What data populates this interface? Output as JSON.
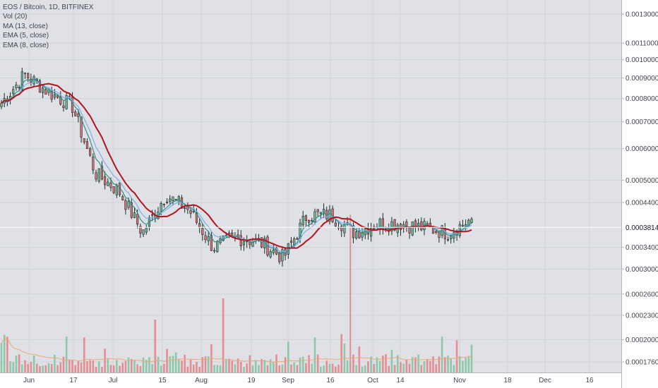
{
  "header": {
    "symbol": "EOS / Bitcoin, 1D, BITFINEX",
    "indicators": [
      "Vol (20)",
      "MA (13, close)",
      "EMA (5, close)",
      "EMA (8, close)"
    ]
  },
  "colors": {
    "background": "#dfe1e6",
    "axis_background": "#ffffff",
    "grid": "#d0d3d9",
    "candle_up": "#6fb99a",
    "candle_down": "#d9737a",
    "vol_up": "#8dc8ab",
    "vol_down": "#e28e92",
    "ma13": "#b0141c",
    "ema5": "#2f8f8a",
    "ema8": "#7ab0e6",
    "vol_ma": "#f0a877",
    "price_line": "#ffffff"
  },
  "price_axis": {
    "labels": [
      "0.00130000",
      "0.00110000",
      "0.00100000",
      "0.00090000",
      "0.00080000",
      "0.00070000",
      "0.00060000",
      "0.00050000",
      "0.00044000",
      "0.00034000",
      "0.00030000",
      "0.00026000",
      "0.00023000",
      "0.00020000",
      "0.00017600"
    ],
    "current_price": "0.00038147",
    "scale": "log"
  },
  "time_axis": {
    "labels": [
      "Jun",
      "17",
      "Jul",
      "15",
      "Aug",
      "19",
      "Sep",
      "16",
      "Oct",
      "14",
      "Nov",
      "18",
      "Dec",
      "16"
    ]
  },
  "chart_data": {
    "type": "candlestick",
    "series": [
      {
        "name": "EOS / Bitcoin, 1D, BITFINEX",
        "kind": "ohlc",
        "x": [
          "May 29",
          "Jun 6",
          "Jun 14",
          "Jun 22",
          "Jun 30",
          "Jul 8",
          "Jul 16",
          "Jul 24",
          "Aug 1",
          "Aug 9",
          "Aug 17",
          "Aug 25",
          "Sep 2",
          "Sep 10",
          "Sep 18",
          "Sep 26",
          "Oct 4",
          "Oct 12",
          "Oct 20",
          "Oct 28",
          "Nov 3"
        ],
        "close": [
          0.00078,
          0.00092,
          0.00083,
          0.00077,
          0.00052,
          0.00047,
          0.00037,
          0.00046,
          0.00042,
          0.00034,
          0.00036,
          0.00035,
          0.00032,
          0.00041,
          0.00041,
          0.00037,
          0.00039,
          0.00039,
          0.00038,
          0.00037,
          0.0004
        ]
      },
      {
        "name": "MA (13, close)",
        "kind": "line",
        "values": [
          0.00082,
          0.00087,
          0.00083,
          0.00078,
          0.0006,
          0.0005,
          0.00041,
          0.00043,
          0.0004,
          0.00036,
          0.00036,
          0.00035,
          0.00034,
          0.00037,
          0.0004,
          0.00038,
          0.00038,
          0.00039,
          0.00038,
          0.00037,
          0.00038
        ]
      },
      {
        "name": "Vol (20)",
        "kind": "volume"
      }
    ],
    "log_scale": true,
    "grid": true
  }
}
